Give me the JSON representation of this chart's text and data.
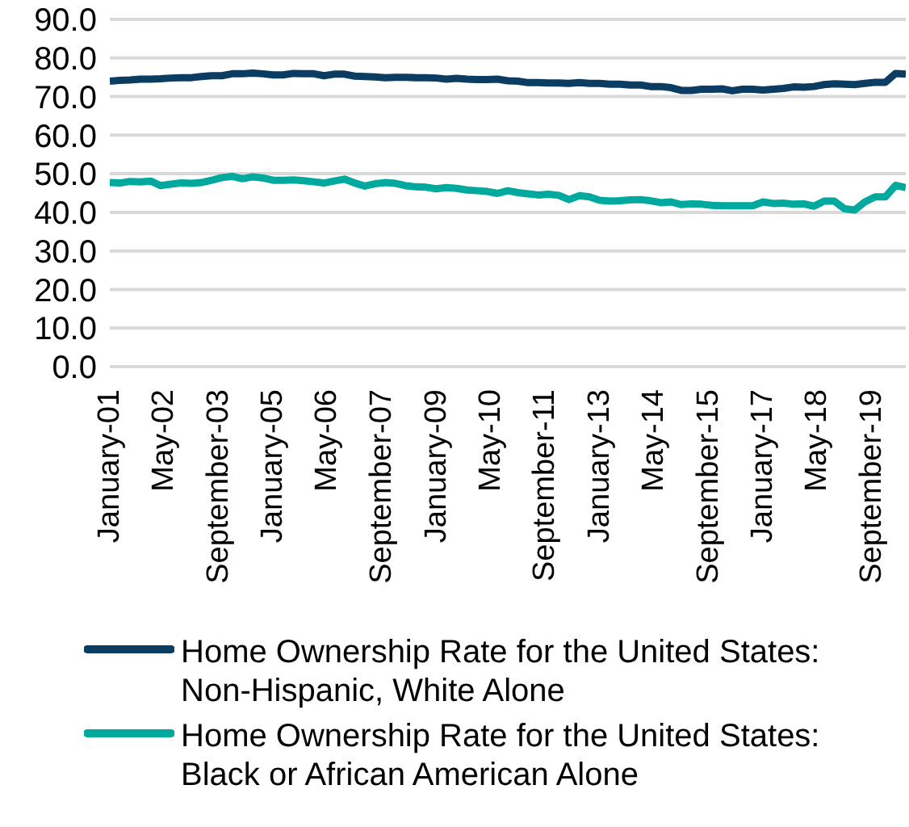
{
  "chart_data": {
    "type": "line",
    "x": [
      "2001-01",
      "2001-04",
      "2001-07",
      "2001-10",
      "2002-01",
      "2002-04",
      "2002-07",
      "2002-10",
      "2003-01",
      "2003-04",
      "2003-07",
      "2003-10",
      "2004-01",
      "2004-04",
      "2004-07",
      "2004-10",
      "2005-01",
      "2005-04",
      "2005-07",
      "2005-10",
      "2006-01",
      "2006-04",
      "2006-07",
      "2006-10",
      "2007-01",
      "2007-04",
      "2007-07",
      "2007-10",
      "2008-01",
      "2008-04",
      "2008-07",
      "2008-10",
      "2009-01",
      "2009-04",
      "2009-07",
      "2009-10",
      "2010-01",
      "2010-04",
      "2010-07",
      "2010-10",
      "2011-01",
      "2011-04",
      "2011-07",
      "2011-10",
      "2012-01",
      "2012-04",
      "2012-07",
      "2012-10",
      "2013-01",
      "2013-04",
      "2013-07",
      "2013-10",
      "2014-01",
      "2014-04",
      "2014-07",
      "2014-10",
      "2015-01",
      "2015-04",
      "2015-07",
      "2015-10",
      "2016-01",
      "2016-04",
      "2016-07",
      "2016-10",
      "2017-01",
      "2017-04",
      "2017-07",
      "2017-10",
      "2018-01",
      "2018-04",
      "2018-07",
      "2018-10",
      "2019-01",
      "2019-04",
      "2019-07",
      "2019-10",
      "2020-01",
      "2020-04",
      "2020-07"
    ],
    "series": [
      {
        "name": "Home Ownership Rate for the United States: Non-Hispanic, White Alone",
        "color": "#0b3c61",
        "values": [
          74.0,
          74.2,
          74.3,
          74.5,
          74.5,
          74.6,
          74.8,
          74.9,
          74.9,
          75.2,
          75.4,
          75.4,
          75.9,
          75.9,
          76.1,
          75.9,
          75.6,
          75.6,
          76.0,
          75.9,
          75.9,
          75.4,
          75.8,
          75.8,
          75.3,
          75.2,
          75.1,
          74.9,
          75.0,
          75.0,
          74.9,
          74.9,
          74.8,
          74.5,
          74.7,
          74.5,
          74.4,
          74.4,
          74.5,
          74.1,
          74.0,
          73.6,
          73.6,
          73.5,
          73.5,
          73.4,
          73.6,
          73.4,
          73.4,
          73.2,
          73.2,
          73.0,
          73.0,
          72.6,
          72.6,
          72.3,
          71.6,
          71.6,
          71.9,
          71.9,
          72.0,
          71.5,
          71.9,
          71.9,
          71.7,
          71.9,
          72.1,
          72.5,
          72.4,
          72.6,
          73.1,
          73.3,
          73.2,
          73.1,
          73.4,
          73.7,
          73.7,
          76.0,
          75.8
        ]
      },
      {
        "name": "Home Ownership Rate for the United States: Black or African American Alone",
        "color": "#00a99d",
        "values": [
          47.7,
          47.6,
          48.0,
          47.9,
          48.1,
          46.9,
          47.3,
          47.6,
          47.5,
          47.7,
          48.3,
          49.0,
          49.3,
          48.7,
          49.2,
          48.9,
          48.3,
          48.3,
          48.4,
          48.2,
          47.9,
          47.6,
          48.1,
          48.6,
          47.6,
          46.8,
          47.4,
          47.7,
          47.5,
          46.9,
          46.6,
          46.5,
          46.1,
          46.4,
          46.2,
          45.8,
          45.6,
          45.4,
          44.9,
          45.6,
          45.1,
          44.8,
          44.5,
          44.7,
          44.4,
          43.3,
          44.3,
          44.0,
          43.1,
          42.9,
          43.0,
          43.2,
          43.3,
          43.0,
          42.5,
          42.7,
          42.0,
          42.2,
          42.1,
          41.8,
          41.7,
          41.7,
          41.7,
          41.7,
          42.7,
          42.3,
          42.4,
          42.1,
          42.2,
          41.6,
          42.9,
          42.9,
          40.9,
          40.6,
          42.7,
          44.0,
          44.0,
          47.0,
          46.4
        ]
      }
    ],
    "xlim": [
      "2001-01",
      "2020-07"
    ],
    "xticks": [
      {
        "value": "2001-01",
        "label": "January-01"
      },
      {
        "value": "2002-05",
        "label": "May-02"
      },
      {
        "value": "2003-09",
        "label": "September-03"
      },
      {
        "value": "2005-01",
        "label": "January-05"
      },
      {
        "value": "2006-05",
        "label": "May-06"
      },
      {
        "value": "2007-09",
        "label": "September-07"
      },
      {
        "value": "2009-01",
        "label": "January-09"
      },
      {
        "value": "2010-05",
        "label": "May-10"
      },
      {
        "value": "2011-09",
        "label": "September-11"
      },
      {
        "value": "2013-01",
        "label": "January-13"
      },
      {
        "value": "2014-05",
        "label": "May-14"
      },
      {
        "value": "2015-09",
        "label": "September-15"
      },
      {
        "value": "2017-01",
        "label": "January-17"
      },
      {
        "value": "2018-05",
        "label": "May-18"
      },
      {
        "value": "2019-09",
        "label": "September-19"
      }
    ],
    "ylim": [
      0,
      90
    ],
    "yticks": [
      {
        "value": 0,
        "label": "0.0"
      },
      {
        "value": 10,
        "label": "10.0"
      },
      {
        "value": 20,
        "label": "20.0"
      },
      {
        "value": 30,
        "label": "30.0"
      },
      {
        "value": 40,
        "label": "40.0"
      },
      {
        "value": 50,
        "label": "50.0"
      },
      {
        "value": 60,
        "label": "60.0"
      },
      {
        "value": 70,
        "label": "70.0"
      },
      {
        "value": 80,
        "label": "80.0"
      },
      {
        "value": 90,
        "label": "90.0"
      }
    ],
    "grid": "y",
    "legend": "bottom",
    "marker": "none",
    "line_style": "solid"
  }
}
